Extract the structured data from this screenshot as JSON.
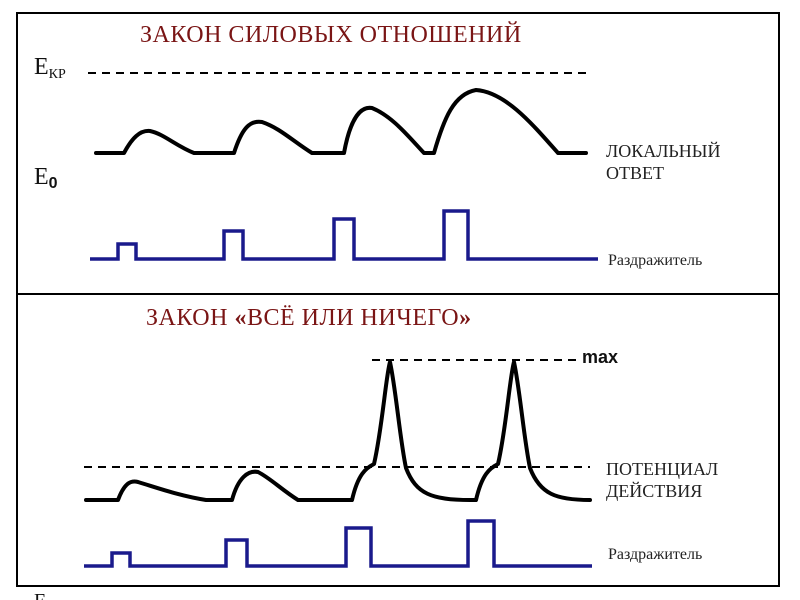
{
  "top_panel": {
    "title": "ЗАКОН СИЛОВЫХ ОТНОШЕНИЙ",
    "threshold_label_main": "E",
    "threshold_label_sub": "КР",
    "baseline_label_main": "E",
    "baseline_label_sub": "0",
    "response_label_line1": "ЛОКАЛЬНЫЙ",
    "response_label_line2": "ОТВЕТ",
    "stimulus_label": "Раздражитель"
  },
  "bottom_panel": {
    "title_prefix": "ЗАКОН ",
    "title_quote_open": "«",
    "title_main": "ВСЁ ИЛИ НИЧЕГО",
    "title_quote_close": "»",
    "max_label": "max",
    "response_label_line1": "ПОТЕНЦИАЛ",
    "response_label_line2": "ДЕЙСТВИЯ",
    "stimulus_label": "Раздражитель"
  },
  "colors": {
    "title": "#7a1515",
    "response_curve": "#000000",
    "stimulus_curve": "#1a1a8c",
    "threshold_line": "#000000"
  },
  "footer_partial_text": "E"
}
